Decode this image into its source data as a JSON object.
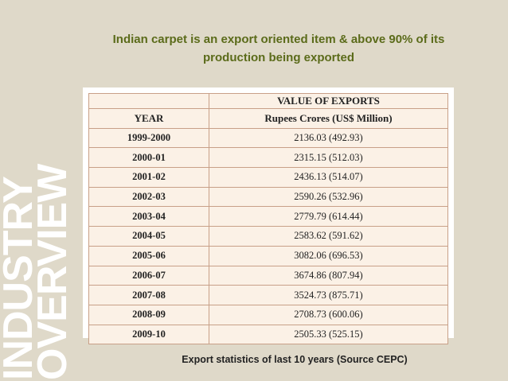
{
  "slide": {
    "heading": "Indian carpet is an export oriented item & above 90% of its production being exported",
    "side_words": [
      "INDUSTRY",
      "OVERVIEW"
    ],
    "caption": "Export statistics of last 10 years (Source CEPC)"
  },
  "table": {
    "super_header": "VALUE OF EXPORTS",
    "headers": [
      "YEAR",
      "Rupees Crores (US$ Million)"
    ],
    "rows": [
      {
        "year": "1999-2000",
        "value": "2136.03 (492.93)"
      },
      {
        "year": "2000-01",
        "value": "2315.15 (512.03)"
      },
      {
        "year": "2001-02",
        "value": "2436.13 (514.07)"
      },
      {
        "year": "2002-03",
        "value": "2590.26 (532.96)"
      },
      {
        "year": "2003-04",
        "value": "2779.79 (614.44)"
      },
      {
        "year": "2004-05",
        "value": "2583.62 (591.62)"
      },
      {
        "year": "2005-06",
        "value": "3082.06 (696.53)"
      },
      {
        "year": "2006-07",
        "value": "3674.86 (807.94)"
      },
      {
        "year": "2007-08",
        "value": "3524.73 (875.71)"
      },
      {
        "year": "2008-09",
        "value": "2708.73 (600.06)"
      },
      {
        "year": "2009-10",
        "value": "2505.33 (525.15)"
      }
    ]
  },
  "colors": {
    "background": "#dfd9c9",
    "heading_text": "#5b6b1a",
    "table_cell": "#fbf1e6",
    "table_border": "#c8a088"
  }
}
